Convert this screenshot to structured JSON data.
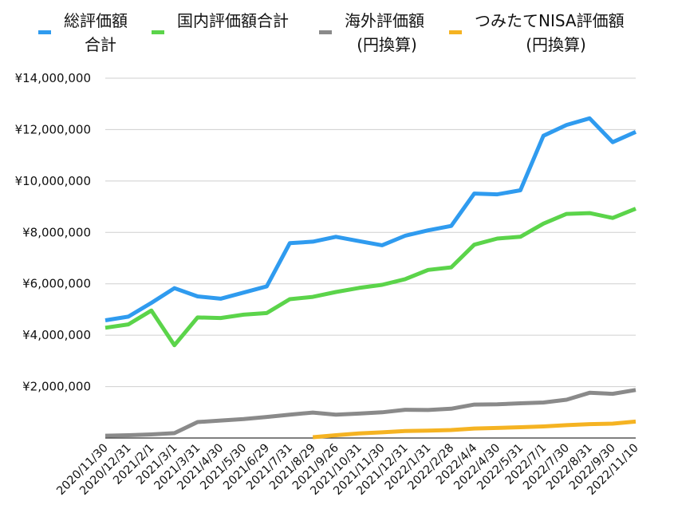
{
  "chart_data": {
    "type": "line",
    "title": "",
    "xlabel": "",
    "ylabel": "",
    "ylim": [
      0,
      14000000
    ],
    "yticks": [
      0,
      2000000,
      4000000,
      6000000,
      8000000,
      10000000,
      12000000,
      14000000
    ],
    "ytick_labels": [
      "",
      "¥2,000,000",
      "¥4,000,000",
      "¥6,000,000",
      "¥8,000,000",
      "¥10,000,000",
      "¥12,000,000",
      "¥14,000,000"
    ],
    "grid": true,
    "legend_position": "top",
    "categories": [
      "2020/11/30",
      "2020/12/31",
      "2021/2/1",
      "2021/3/1",
      "2021/3/31",
      "2021/4/30",
      "2021/5/30",
      "2021/6/29",
      "2021/7/31",
      "2021/8/29",
      "2021/9/26",
      "2021/10/31",
      "2021/11/30",
      "2021/12/31",
      "2022/1/31",
      "2022/2/28",
      "2022/4/4",
      "2022/4/30",
      "2022/5/31",
      "2022/7/1",
      "2022/7/30",
      "2022/8/31",
      "2022/9/30",
      "2022/11/10"
    ],
    "series": [
      {
        "name": "総評価額\n合計",
        "color": "#2f9bef",
        "values": [
          4580000,
          4720000,
          5260000,
          5830000,
          5510000,
          5420000,
          5660000,
          5900000,
          7580000,
          7640000,
          7830000,
          7660000,
          7500000,
          7870000,
          8080000,
          8250000,
          9510000,
          9480000,
          9640000,
          11760000,
          12180000,
          12440000,
          11510000,
          11910000
        ]
      },
      {
        "name": "国内評価額合計",
        "color": "#5bd44a",
        "values": [
          4290000,
          4420000,
          4960000,
          3610000,
          4690000,
          4670000,
          4800000,
          4860000,
          5400000,
          5490000,
          5680000,
          5840000,
          5960000,
          6180000,
          6540000,
          6640000,
          7520000,
          7760000,
          7830000,
          8340000,
          8720000,
          8750000,
          8560000,
          8920000
        ]
      },
      {
        "name": "海外評価額\n(円換算)",
        "color": "#8a8a8a",
        "values": [
          90000,
          110000,
          140000,
          190000,
          620000,
          680000,
          740000,
          820000,
          910000,
          990000,
          910000,
          950000,
          1000000,
          1100000,
          1090000,
          1140000,
          1300000,
          1310000,
          1350000,
          1380000,
          1490000,
          1760000,
          1720000,
          1870000
        ]
      },
      {
        "name": "つみたてNISA評価額\n(円換算)",
        "color": "#f5b322",
        "values": [
          null,
          null,
          null,
          null,
          null,
          null,
          null,
          null,
          null,
          30000,
          110000,
          180000,
          220000,
          270000,
          290000,
          310000,
          370000,
          390000,
          420000,
          450000,
          500000,
          540000,
          560000,
          640000
        ]
      }
    ]
  }
}
